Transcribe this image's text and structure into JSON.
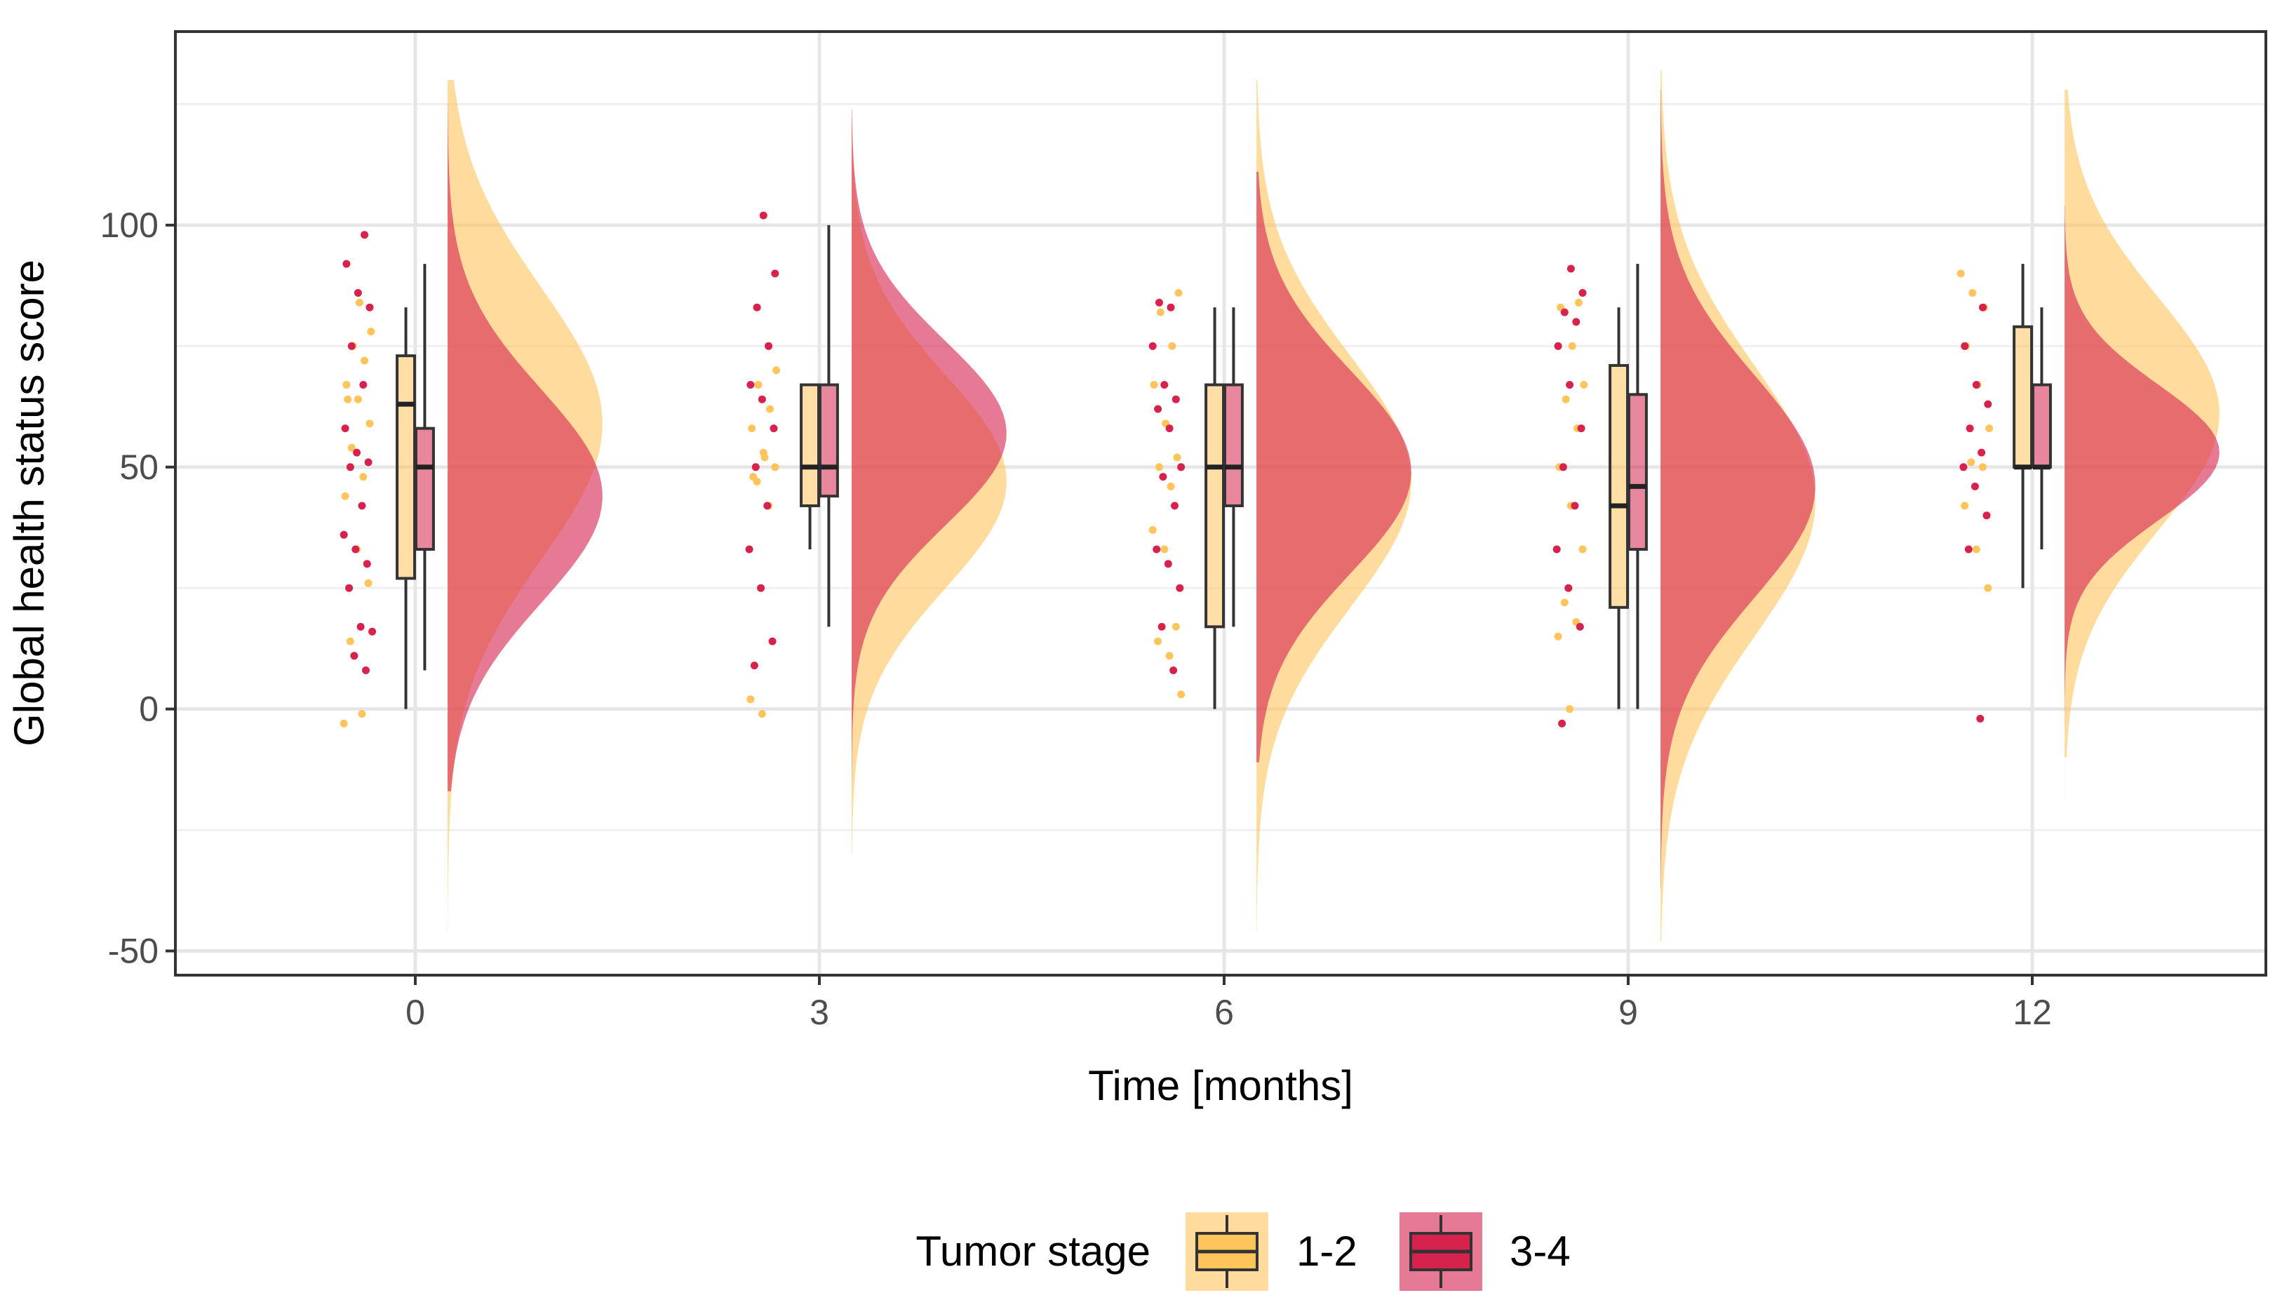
{
  "chart_data": {
    "type": "raincloud",
    "xlabel": "Time [months]",
    "ylabel": "Global health status score",
    "x_ticks": [
      "0",
      "3",
      "6",
      "9",
      "12"
    ],
    "y_ticks": [
      "-50",
      "0",
      "50",
      "100"
    ],
    "ylim": [
      -55,
      140
    ],
    "grid": true,
    "legend": {
      "title": "Tumor stage",
      "position": "bottom",
      "entries": [
        "1-2",
        "3-4"
      ]
    },
    "series": [
      {
        "name": "1-2",
        "color": "#FFC55C",
        "groups": [
          {
            "time": 0,
            "box": {
              "min": 0,
              "q1": 27,
              "median": 63,
              "q3": 73,
              "max": 83
            },
            "density": {
              "mean": 59,
              "sd": 28,
              "lo": -46,
              "hi": 130
            },
            "points": [
              -3,
              -1,
              14,
              26,
              33,
              44,
              48,
              54,
              59,
              64,
              67,
              72,
              75,
              78,
              84,
              64
            ]
          },
          {
            "time": 3,
            "box": {
              "min": 33,
              "q1": 42,
              "median": 50,
              "q3": 67,
              "max": 67
            },
            "density": {
              "mean": 47,
              "sd": 22,
              "lo": -30,
              "hi": 122
            },
            "points": [
              -1,
              2,
              42,
              47,
              50,
              53,
              58,
              62,
              67,
              70,
              52,
              48
            ]
          },
          {
            "time": 6,
            "box": {
              "min": 0,
              "q1": 17,
              "median": 50,
              "q3": 67,
              "max": 83
            },
            "density": {
              "mean": 47,
              "sd": 26,
              "lo": -46,
              "hi": 130
            },
            "points": [
              3,
              11,
              14,
              17,
              33,
              37,
              46,
              50,
              52,
              59,
              67,
              75,
              82,
              86
            ]
          },
          {
            "time": 9,
            "box": {
              "min": 0,
              "q1": 21,
              "median": 42,
              "q3": 71,
              "max": 83
            },
            "density": {
              "mean": 43,
              "sd": 28,
              "lo": -48,
              "hi": 132
            },
            "points": [
              0,
              15,
              18,
              22,
              33,
              42,
              50,
              58,
              64,
              67,
              75,
              83,
              84
            ]
          },
          {
            "time": 12,
            "box": {
              "min": 25,
              "q1": 50,
              "median": 50,
              "q3": 79,
              "max": 92
            },
            "density": {
              "mean": 61,
              "sd": 24,
              "lo": -10,
              "hi": 128
            },
            "points": [
              25,
              33,
              42,
              50,
              51,
              58,
              67,
              75,
              83,
              86,
              90
            ]
          }
        ]
      },
      {
        "name": "3-4",
        "color": "#D6224D",
        "groups": [
          {
            "time": 0,
            "box": {
              "min": 8,
              "q1": 33,
              "median": 50,
              "q3": 58,
              "max": 92
            },
            "density": {
              "mean": 44,
              "sd": 22,
              "lo": -17,
              "hi": 125
            },
            "points": [
              8,
              11,
              16,
              17,
              25,
              30,
              33,
              36,
              42,
              50,
              51,
              53,
              58,
              67,
              75,
              83,
              86,
              92,
              98
            ]
          },
          {
            "time": 3,
            "box": {
              "min": 17,
              "q1": 44,
              "median": 50,
              "q3": 67,
              "max": 100
            },
            "density": {
              "mean": 57,
              "sd": 19,
              "lo": -16,
              "hi": 124
            },
            "points": [
              9,
              14,
              25,
              33,
              42,
              50,
              58,
              64,
              67,
              75,
              83,
              90,
              102
            ]
          },
          {
            "time": 6,
            "box": {
              "min": 17,
              "q1": 42,
              "median": 50,
              "q3": 67,
              "max": 83
            },
            "density": {
              "mean": 49,
              "sd": 21,
              "lo": -11,
              "hi": 111
            },
            "points": [
              8,
              17,
              25,
              30,
              33,
              42,
              48,
              50,
              58,
              62,
              64,
              67,
              75,
              83,
              84
            ]
          },
          {
            "time": 9,
            "box": {
              "min": 0,
              "q1": 33,
              "median": 46,
              "q3": 65,
              "max": 92
            },
            "density": {
              "mean": 46,
              "sd": 23,
              "lo": -37,
              "hi": 128
            },
            "points": [
              -3,
              17,
              25,
              33,
              42,
              50,
              58,
              67,
              75,
              80,
              82,
              86,
              91
            ]
          },
          {
            "time": 12,
            "box": {
              "min": 33,
              "q1": 50,
              "median": 50,
              "q3": 67,
              "max": 83
            },
            "density": {
              "mean": 53,
              "sd": 14,
              "lo": -20,
              "hi": 104
            },
            "points": [
              -2,
              33,
              40,
              46,
              50,
              53,
              58,
              63,
              67,
              75,
              83
            ]
          }
        ]
      }
    ]
  }
}
